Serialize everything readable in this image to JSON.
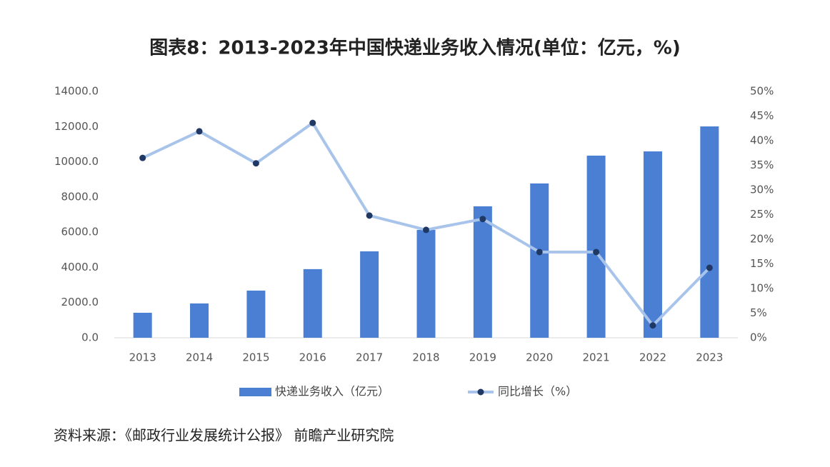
{
  "chart_data": {
    "type": "bar",
    "title": "图表8：2013-2023年中国快递业务收入情况(单位：亿元，%)",
    "source": "资料来源：《邮政行业发展统计公报》 前瞻产业研究院",
    "categories": [
      "2013",
      "2014",
      "2015",
      "2016",
      "2017",
      "2018",
      "2019",
      "2020",
      "2021",
      "2022",
      "2023"
    ],
    "series": [
      {
        "name": "快递业务收入（亿元）",
        "type": "bar",
        "color": "#4a7fd4",
        "values": [
          1420,
          1950,
          2680,
          3900,
          4910,
          6130,
          7470,
          8770,
          10350,
          10590,
          12010
        ]
      },
      {
        "name": "同比增长（%）",
        "type": "line",
        "axis": "y2",
        "color": "#a9c4ea",
        "marker_color": "#1f3864",
        "values": [
          36.5,
          41.9,
          35.4,
          43.6,
          24.8,
          21.9,
          24.1,
          17.4,
          17.4,
          2.5,
          14.2
        ]
      }
    ],
    "ylim": [
      0,
      14000
    ],
    "yticks": [
      {
        "value": 0,
        "label": "0.0"
      },
      {
        "value": 2000,
        "label": "2000.0"
      },
      {
        "value": 4000,
        "label": "4000.0"
      },
      {
        "value": 6000,
        "label": "6000.0"
      },
      {
        "value": 8000,
        "label": "8000.0"
      },
      {
        "value": 10000,
        "label": "10000.0"
      },
      {
        "value": 12000,
        "label": "12000.0"
      },
      {
        "value": 14000,
        "label": "14000.0"
      }
    ],
    "y2lim": [
      0,
      50
    ],
    "y2ticks": [
      {
        "value": 0,
        "label": "0%"
      },
      {
        "value": 5,
        "label": "5%"
      },
      {
        "value": 10,
        "label": "10%"
      },
      {
        "value": 15,
        "label": "15%"
      },
      {
        "value": 20,
        "label": "20%"
      },
      {
        "value": 25,
        "label": "25%"
      },
      {
        "value": 30,
        "label": "30%"
      },
      {
        "value": 35,
        "label": "35%"
      },
      {
        "value": 40,
        "label": "40%"
      },
      {
        "value": 45,
        "label": "45%"
      },
      {
        "value": 50,
        "label": "50%"
      }
    ],
    "grid": false
  }
}
